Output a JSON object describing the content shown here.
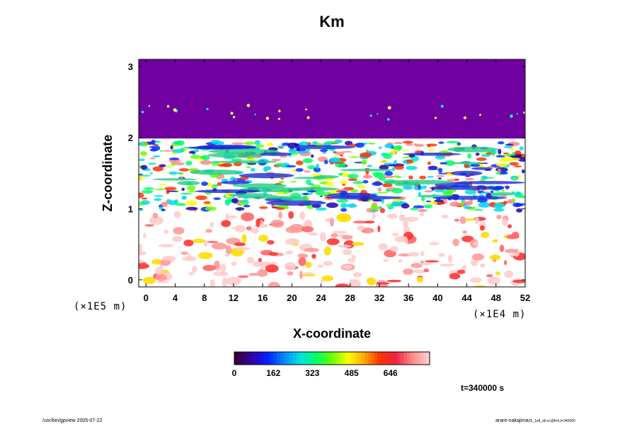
{
  "chart_data": {
    "type": "heatmap",
    "title": "Km",
    "xlabel": "X-coordinate",
    "ylabel": "Z-coordinate",
    "x_scale_label": "(×1E4 m)",
    "y_scale_label": "(×1E5 m)",
    "xlim": [
      -1,
      52
    ],
    "ylim": [
      -0.1,
      3.1
    ],
    "x_ticks": [
      "0",
      "4",
      "8",
      "12",
      "16",
      "20",
      "24",
      "28",
      "32",
      "36",
      "40",
      "44",
      "48",
      "52"
    ],
    "y_ticks": [
      "0",
      "1",
      "2",
      "3"
    ],
    "colorbar": {
      "range": [
        0,
        808
      ],
      "ticks": [
        "0",
        "162",
        "323",
        "485",
        "646"
      ],
      "colors": [
        "#330033",
        "#3300aa",
        "#0022ff",
        "#0088ff",
        "#00e0e0",
        "#00ff66",
        "#66ff00",
        "#ffff00",
        "#ffaa00",
        "#ff3300",
        "#ee2244",
        "#ff8888",
        "#ffcccc"
      ]
    },
    "layers": [
      {
        "z_range": [
          1.95,
          3.1
        ],
        "description_value": 0,
        "color": "#7000a0"
      },
      {
        "z_range": [
          0.95,
          1.95
        ],
        "description_value": "mixed 0-808",
        "color": "mixed"
      },
      {
        "z_range": [
          -0.1,
          0.95
        ],
        "description_value": "mostly >646",
        "color": "#ffffff"
      }
    ],
    "time_label": "t=340000 s"
  },
  "footer": {
    "left": "/usr/bin/gpview 2005-07-22",
    "right_main": "arare-nakajima",
    "right_sub": "03_1e8_all.nc@Km,t=340000"
  }
}
